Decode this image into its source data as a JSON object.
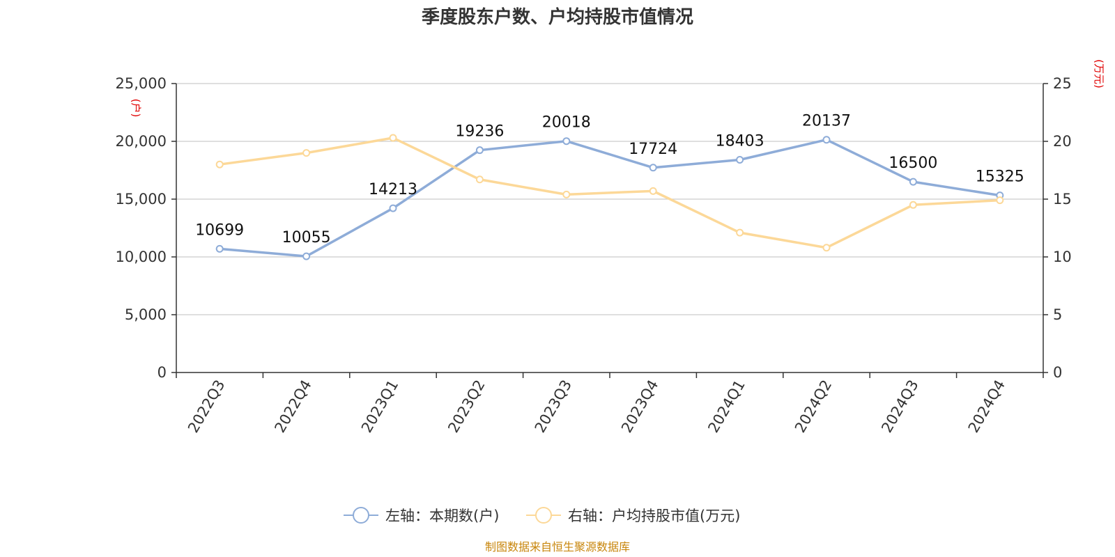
{
  "chart_data": {
    "type": "line",
    "title": "季度股东户数、户均持股市值情况",
    "categories": [
      "2022Q3",
      "2022Q4",
      "2023Q1",
      "2023Q2",
      "2023Q3",
      "2023Q4",
      "2024Q1",
      "2024Q2",
      "2024Q3",
      "2024Q4"
    ],
    "series": [
      {
        "name": "左轴：本期数(户)",
        "axis": "left",
        "color": "#8eacd8",
        "values": [
          10699,
          10055,
          14213,
          19236,
          20018,
          17724,
          18403,
          20137,
          16500,
          15325
        ],
        "data_labels": [
          "10699",
          "10055",
          "14213",
          "19236",
          "20018",
          "17724",
          "18403",
          "20137",
          "16500",
          "15325"
        ]
      },
      {
        "name": "右轴：户均持股市值(万元)",
        "axis": "right",
        "color": "#fcd898",
        "values": [
          18.0,
          19.0,
          20.3,
          16.7,
          15.4,
          15.7,
          12.1,
          10.8,
          14.5,
          14.9
        ]
      }
    ],
    "y_left": {
      "unit": "(户)",
      "range": [
        0,
        25000
      ],
      "ticks": [
        "0",
        "5,000",
        "10,000",
        "15,000",
        "20,000",
        "25,000"
      ],
      "tick_values": [
        0,
        5000,
        10000,
        15000,
        20000,
        25000
      ]
    },
    "y_right": {
      "unit": "(万元)",
      "range": [
        0,
        25
      ],
      "ticks": [
        "0",
        "5",
        "10",
        "15",
        "20",
        "25"
      ],
      "tick_values": [
        0,
        5,
        10,
        15,
        20,
        25
      ]
    },
    "grid": true,
    "legend_position": "bottom",
    "source": "制图数据来自恒生聚源数据库"
  }
}
